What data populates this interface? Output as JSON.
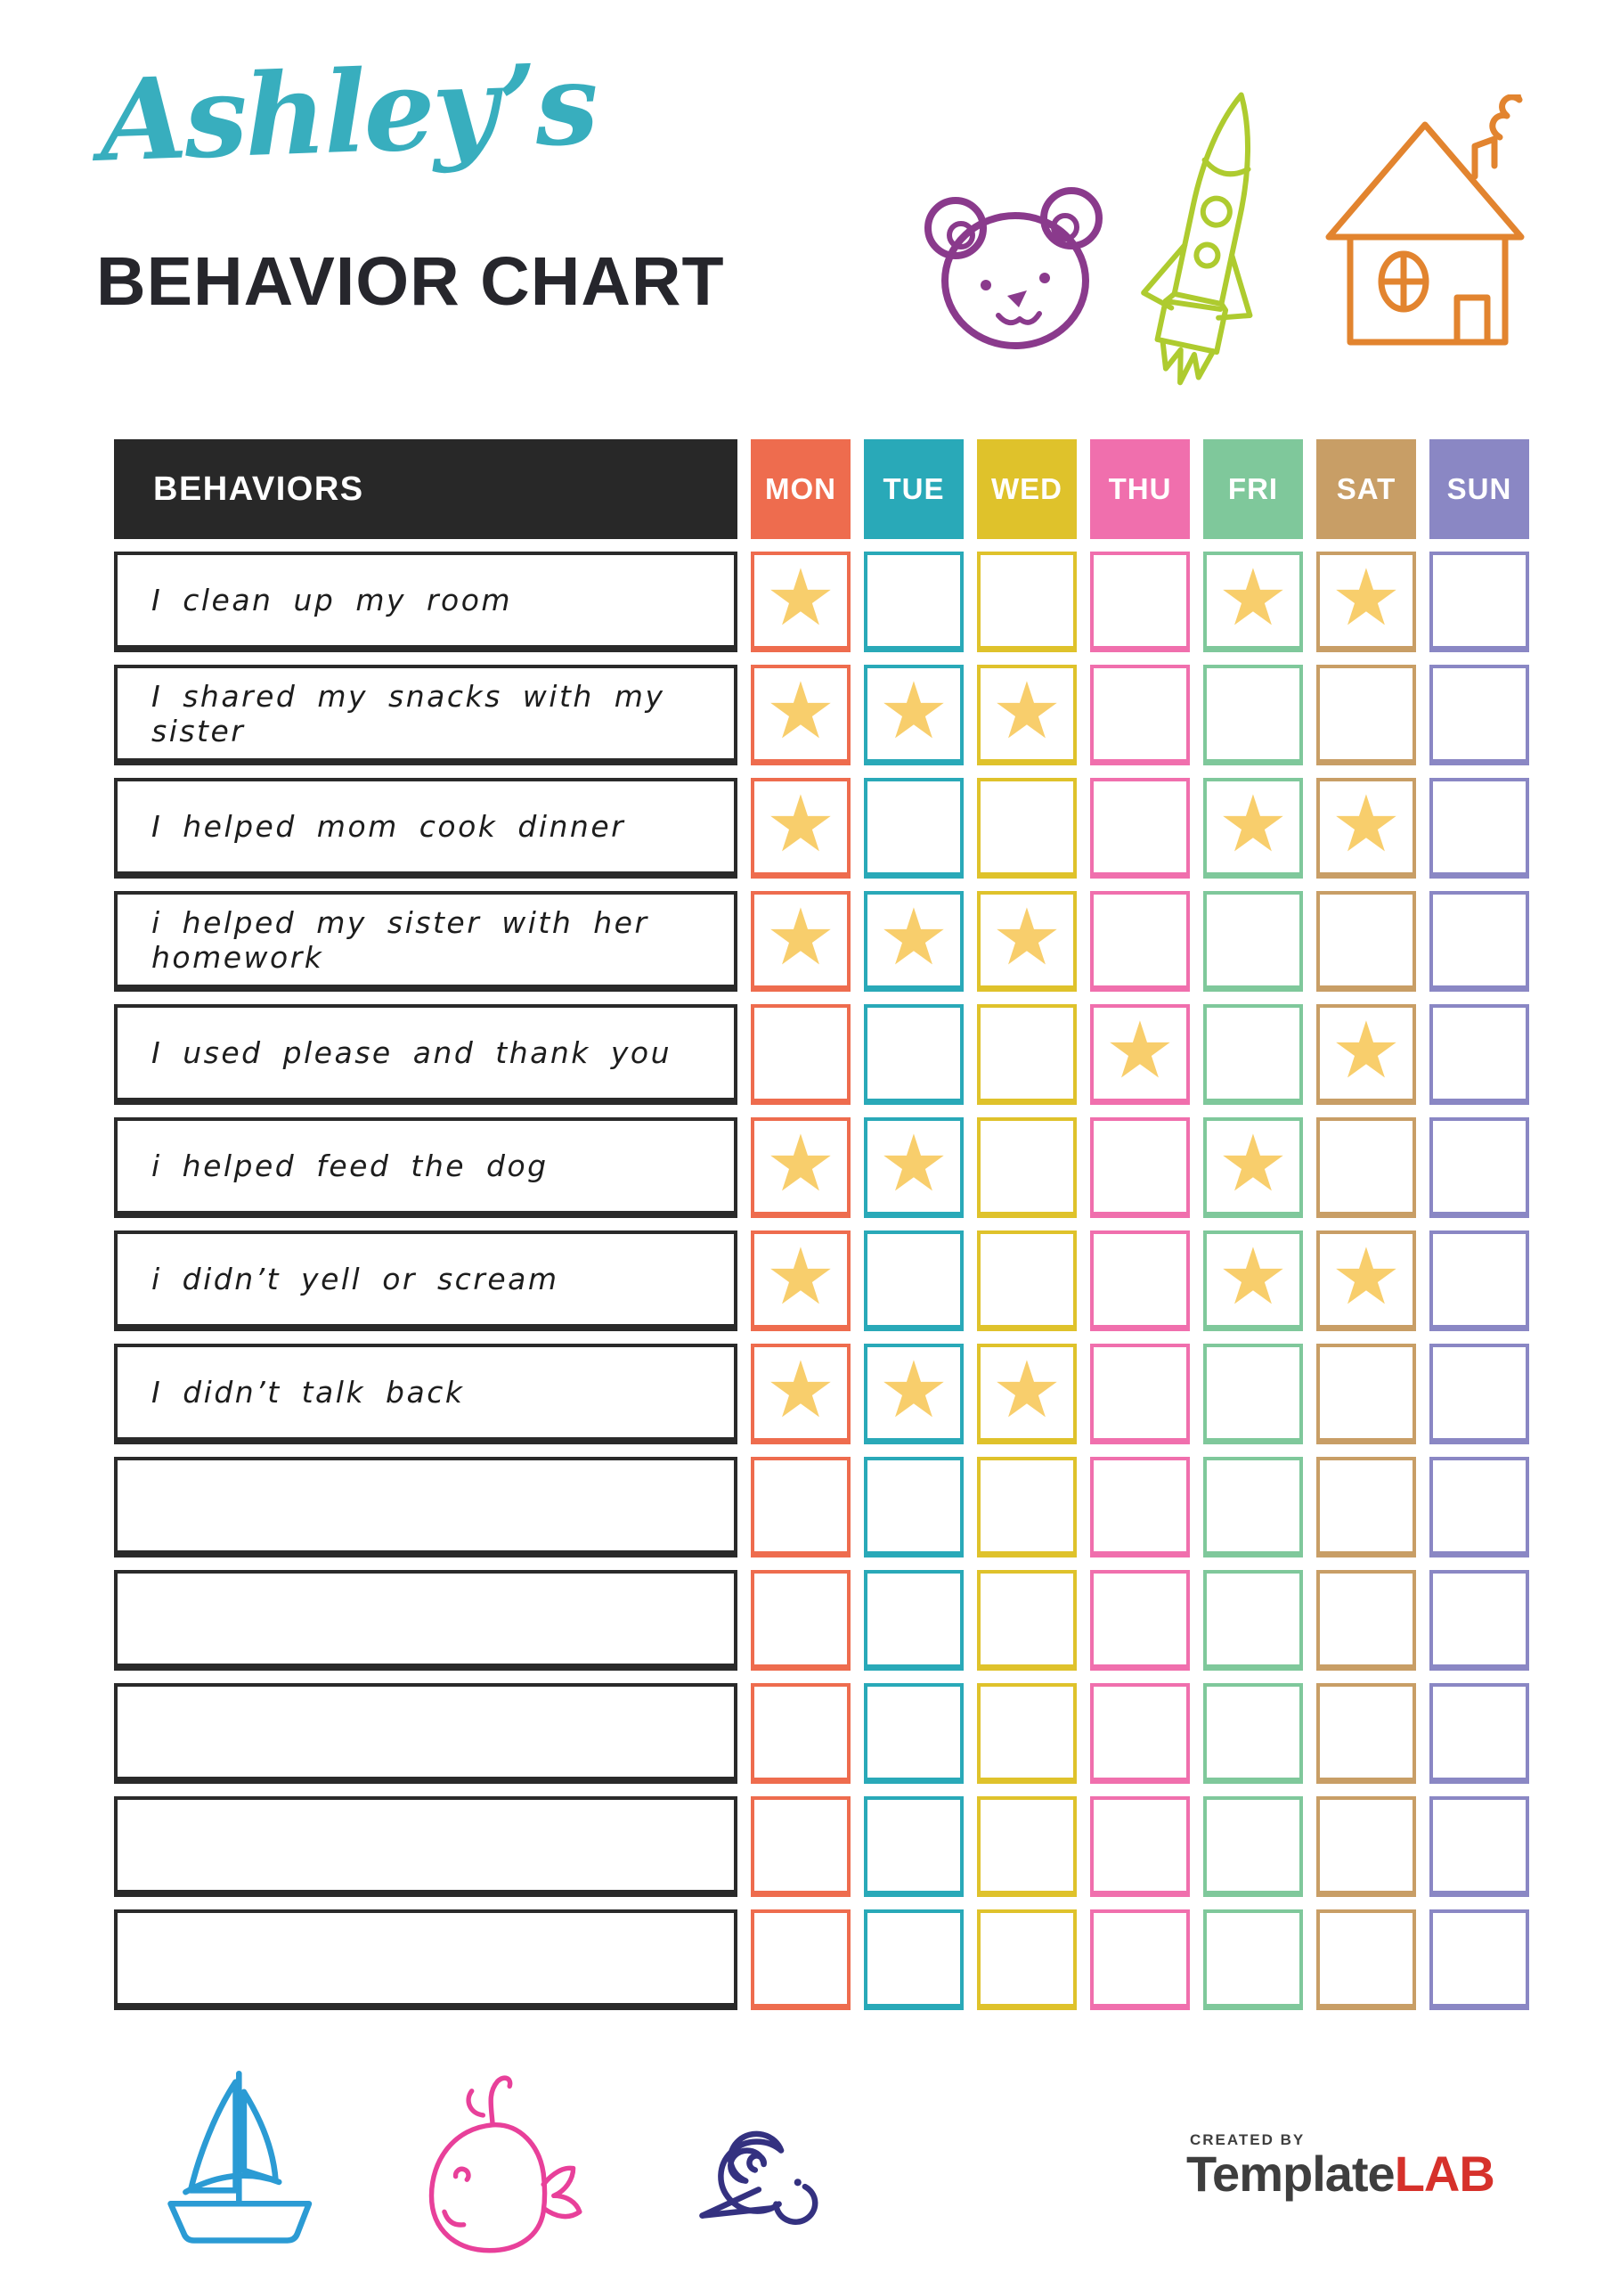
{
  "title": {
    "script": "Ashley’s",
    "main": "BEHAVIOR CHART"
  },
  "header_icons": [
    {
      "name": "teddy-bear-icon",
      "color": "#8a3a8c"
    },
    {
      "name": "rocket-icon",
      "color": "#aecb2f"
    },
    {
      "name": "house-icon",
      "color": "#e2842f"
    }
  ],
  "table": {
    "behaviors_header": "BEHAVIORS",
    "star_glyph": "★",
    "days": [
      {
        "label": "MON",
        "color": "#ee6c4e"
      },
      {
        "label": "TUE",
        "color": "#29a9b8"
      },
      {
        "label": "WED",
        "color": "#dfc22b"
      },
      {
        "label": "THU",
        "color": "#f06fad"
      },
      {
        "label": "FRI",
        "color": "#7fc89b"
      },
      {
        "label": "SAT",
        "color": "#c89e66"
      },
      {
        "label": "SUN",
        "color": "#8a87c4"
      }
    ],
    "rows": [
      {
        "behavior": "I clean up my room",
        "stars": [
          "MON",
          "FRI",
          "SAT"
        ]
      },
      {
        "behavior": "I shared my snacks with my sister",
        "stars": [
          "MON",
          "TUE",
          "WED"
        ]
      },
      {
        "behavior": "I helped mom cook dinner",
        "stars": [
          "MON",
          "FRI",
          "SAT"
        ]
      },
      {
        "behavior": "i helped my sister with her homework",
        "stars": [
          "MON",
          "TUE",
          "WED"
        ]
      },
      {
        "behavior": "I used please and thank you",
        "stars": [
          "THU",
          "SAT"
        ]
      },
      {
        "behavior": "i helped feed the dog",
        "stars": [
          "MON",
          "TUE",
          "FRI"
        ]
      },
      {
        "behavior": "i didn’t yell or scream",
        "stars": [
          "MON",
          "FRI",
          "SAT"
        ]
      },
      {
        "behavior": "I didn’t talk back",
        "stars": [
          "MON",
          "TUE",
          "WED"
        ]
      },
      {
        "behavior": "",
        "stars": []
      },
      {
        "behavior": "",
        "stars": []
      },
      {
        "behavior": "",
        "stars": []
      },
      {
        "behavior": "",
        "stars": []
      },
      {
        "behavior": "",
        "stars": []
      }
    ]
  },
  "footer_icons": [
    {
      "name": "sailboat-icon",
      "color": "#2b9bd4"
    },
    {
      "name": "whale-icon",
      "color": "#e8409a"
    },
    {
      "name": "snail-icon",
      "color": "#343180"
    }
  ],
  "logo": {
    "created_by": "CREATED BY",
    "brand_primary": "Template",
    "brand_accent": "LAB"
  },
  "colors": {
    "title_script": "#38aebe",
    "title_main": "#26262c",
    "table_header_bg": "#282828",
    "behavior_box_border": "#2a2a2a",
    "star": "#f8ce6c",
    "logo_text": "#3e3e3e",
    "logo_accent": "#d6312b"
  }
}
